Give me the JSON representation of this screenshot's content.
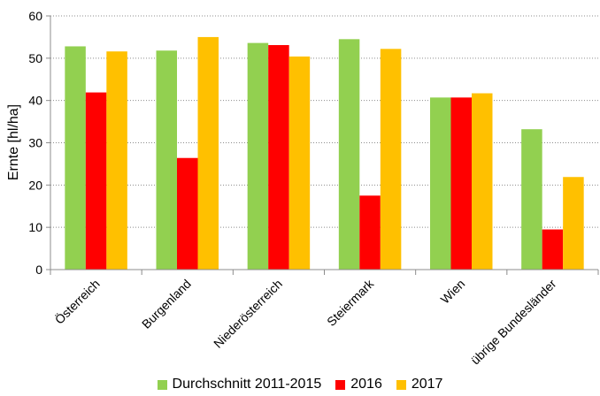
{
  "chart_data": {
    "type": "bar",
    "title": "",
    "xlabel": "",
    "ylabel": "Ernte [hl/ha]",
    "ylim": [
      0,
      60
    ],
    "yticks": [
      0,
      10,
      20,
      30,
      40,
      50,
      60
    ],
    "grid": true,
    "legend_position": "bottom",
    "categories": [
      "Österreich",
      "Burgenland",
      "Niederösterreich",
      "Steiermark",
      "Wien",
      "übrige Bundesländer"
    ],
    "series": [
      {
        "name": "Durchschnitt 2011-2015",
        "color": "#92d050",
        "values": [
          52.8,
          51.8,
          53.6,
          54.5,
          40.7,
          33.2
        ]
      },
      {
        "name": "2016",
        "color": "#ff0000",
        "values": [
          41.9,
          26.4,
          53.1,
          17.5,
          40.7,
          9.5
        ]
      },
      {
        "name": "2017",
        "color": "#ffc000",
        "values": [
          51.6,
          55.0,
          50.4,
          52.2,
          41.7,
          21.9
        ]
      }
    ]
  }
}
